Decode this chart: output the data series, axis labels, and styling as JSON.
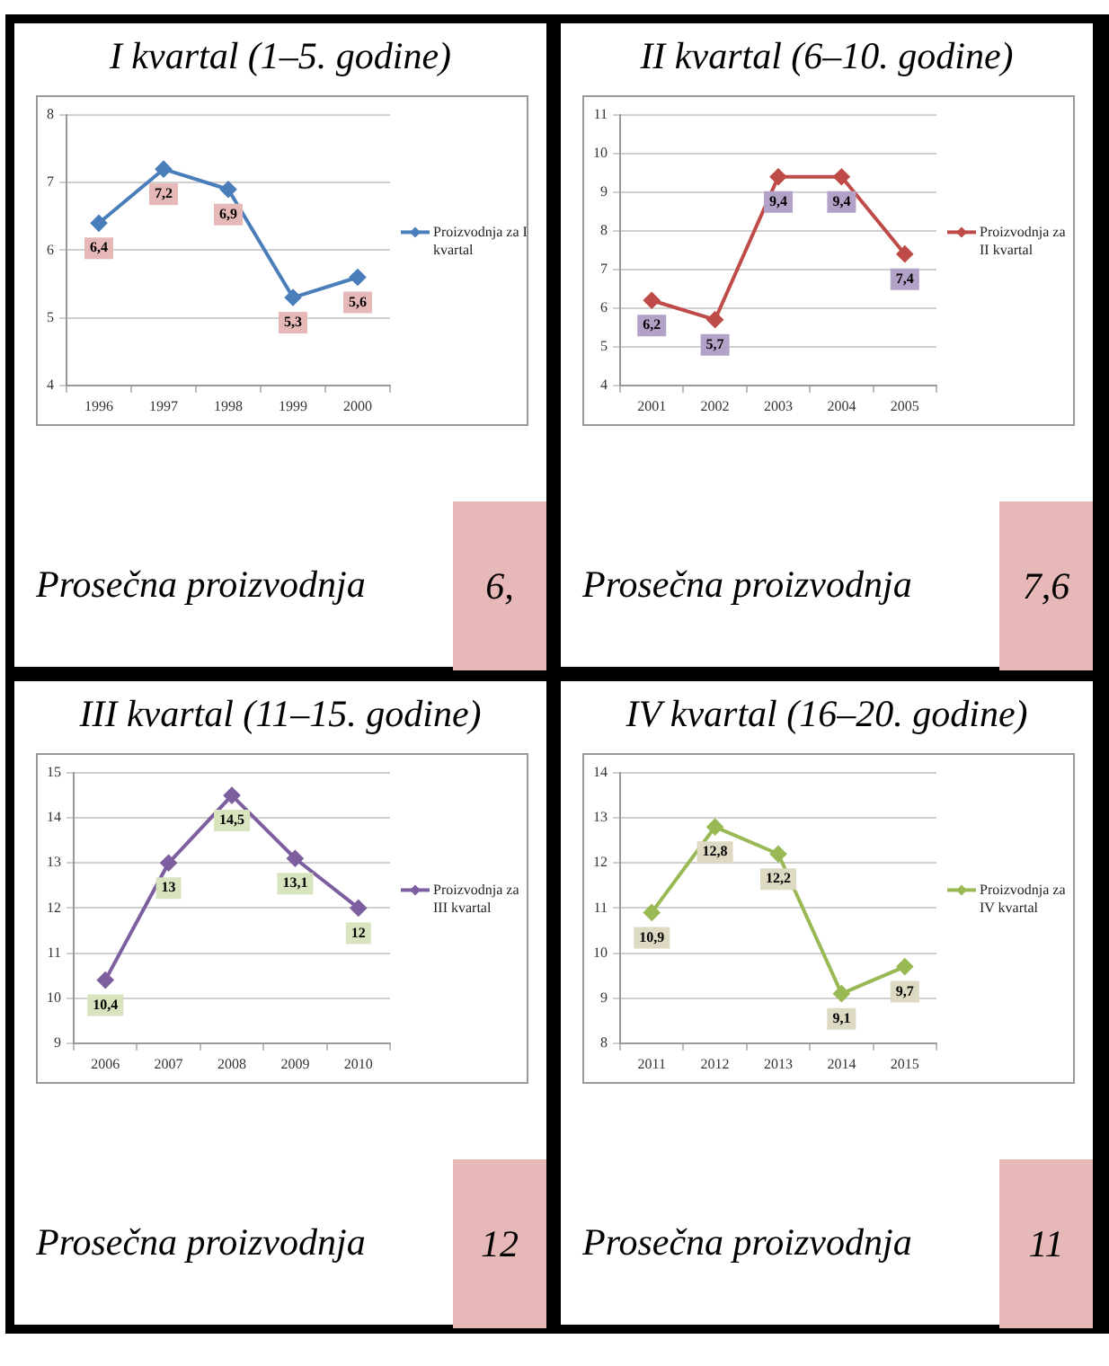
{
  "chart_data": [
    {
      "type": "line",
      "title": "I kvartal (1–5. godine)",
      "categories": [
        "1996",
        "1997",
        "1998",
        "1999",
        "2000"
      ],
      "series": [
        {
          "name": "Proizvodnja za I kvartal",
          "color": "#4a7ebb",
          "values": [
            6.4,
            7.2,
            6.9,
            5.3,
            5.6
          ],
          "value_labels": [
            "6,4",
            "7,2",
            "6,9",
            "5,3",
            "5,6"
          ]
        }
      ],
      "ylim": [
        4,
        8
      ],
      "yticks": [
        4,
        5,
        6,
        7,
        8
      ],
      "grid": "y",
      "legend": "right",
      "marker": "diamond",
      "annotations": [
        "Prosečna proizvodnja",
        "6,"
      ]
    },
    {
      "type": "line",
      "title": "II kvartal (6–10. godine)",
      "categories": [
        "2001",
        "2002",
        "2003",
        "2004",
        "2005"
      ],
      "series": [
        {
          "name": "Proizvodnja za II kvartal",
          "color": "#be4b48",
          "values": [
            6.2,
            5.7,
            9.4,
            9.4,
            7.4
          ],
          "value_labels": [
            "6,2",
            "5,7",
            "9,4",
            "9,4",
            "7,4"
          ]
        }
      ],
      "ylim": [
        4,
        11
      ],
      "yticks": [
        4,
        5,
        6,
        7,
        8,
        9,
        10,
        11
      ],
      "grid": "y",
      "legend": "right",
      "marker": "diamond",
      "annotations": [
        "Prosečna proizvodnja",
        "7,6"
      ]
    },
    {
      "type": "line",
      "title": "III kvartal (11–15. godine)",
      "categories": [
        "2006",
        "2007",
        "2008",
        "2009",
        "2010"
      ],
      "series": [
        {
          "name": "Proizvodnja za III kvartal",
          "color": "#7d5fa0",
          "values": [
            10.4,
            13,
            14.5,
            13.1,
            12
          ],
          "value_labels": [
            "10,4",
            "13",
            "14,5",
            "13,1",
            "12"
          ]
        }
      ],
      "ylim": [
        9,
        15
      ],
      "yticks": [
        9,
        10,
        11,
        12,
        13,
        14,
        15
      ],
      "grid": "y",
      "legend": "right",
      "marker": "diamond",
      "annotations": [
        "Prosečna proizvodnja",
        "12"
      ]
    },
    {
      "type": "line",
      "title": "IV kvartal (16–20. godine)",
      "categories": [
        "2011",
        "2012",
        "2013",
        "2014",
        "2015"
      ],
      "series": [
        {
          "name": "Proizvodnja za IV kvartal",
          "color": "#98b954",
          "values": [
            10.9,
            12.8,
            12.2,
            9.1,
            9.7
          ],
          "value_labels": [
            "10,9",
            "12,8",
            "12,2",
            "9,1",
            "9,7"
          ]
        }
      ],
      "ylim": [
        8,
        14
      ],
      "yticks": [
        8,
        9,
        10,
        11,
        12,
        13,
        14
      ],
      "grid": "y",
      "legend": "right",
      "marker": "diamond",
      "annotations": [
        "Prosečna proizvodnja",
        "11"
      ]
    }
  ]
}
